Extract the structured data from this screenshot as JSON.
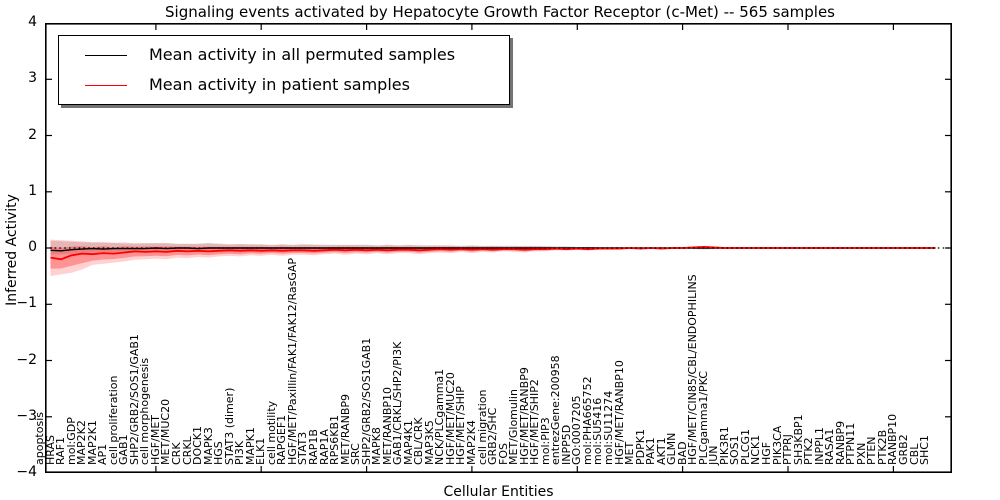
{
  "chart_data": {
    "type": "line",
    "title": "Signaling events activated by Hepatocyte Growth Factor Receptor (c-Met) -- 565 samples",
    "xlabel": "Cellular Entities",
    "ylabel": "Inferred Activity",
    "ylim": [
      -4,
      4
    ],
    "yticks": [
      "4",
      "3",
      "2",
      "1",
      "0",
      "−1",
      "−2",
      "−3",
      "−4"
    ],
    "xtick_step": 10,
    "grid": false,
    "legend_position": "upper left",
    "categories": [
      "apoptosis",
      "HRAS",
      "RAF1",
      "mol:GDP",
      "MAP2K2",
      "MAP2K1",
      "AP1",
      "cell proliferation",
      "GAB1",
      "SHP2/GRB2/SOS1/GAB1",
      "cell morphogenesis",
      "HGF/MET",
      "MET/MUC20",
      "CRK",
      "CRKL",
      "DOCK1",
      "MAPK3",
      "HGS",
      "STAT3 (dimer)",
      "PI3K",
      "MAPK1",
      "ELK1",
      "cell motility",
      "RAPGEF1",
      "HGF/MET/Paxillin/FAK1/FAK12/RasGAP",
      "STAT3",
      "RAP1B",
      "RAP1A",
      "RPS6KB1",
      "MET/RANBP9",
      "SRC",
      "SHP2/GRB2/SOS1GAB1",
      "MAPK8",
      "MET/RANBP10",
      "GAB1/CRKL/SHP2/PI3K",
      "MAP4K1",
      "CBL/CRK",
      "MAP3K5",
      "NCK/PLCgamma1",
      "HGF/MET/MUC20",
      "HGF/MET/SHIP",
      "MAP2K4",
      "cell migration",
      "GRB2/SHC",
      "FOS",
      "MET/Glomulin",
      "HGF/MET/RANBP9",
      "HGF/MET/SHIP2",
      "mol:PIP3",
      "entrezGene:200958",
      "INPP5D",
      "GO:0007205",
      "mol:PHA665752",
      "mol:SU5416",
      "mol:SU11274",
      "HGF/MET/RANBP10",
      "MET",
      "PDPK1",
      "PAK1",
      "AKT1",
      "GLMN",
      "BAD",
      "HGF/MET/CIN85/CBL/ENDOPHILINS",
      "PLCgamma1/PKC",
      "JUN",
      "PIK3R1",
      "SOS1",
      "PLCG1",
      "NCK1",
      "HGF",
      "PIK3CA",
      "PTPRJ",
      "SH3KBP1",
      "PTK2",
      "INPPL1",
      "RASA1",
      "RANBP9",
      "PTPN11",
      "PXN",
      "PTEN",
      "PTK2B",
      "RANBP10",
      "GRB2",
      "CBL",
      "SHC1"
    ],
    "series": [
      {
        "name": "Mean activity in all permuted samples",
        "role": "line",
        "color": "#000000",
        "values": [
          -0.04,
          -0.05,
          -0.03,
          -0.02,
          -0.01,
          -0.02,
          -0.01,
          -0.01,
          -0.01,
          -0.01,
          0,
          -0.01,
          0,
          0,
          -0.01,
          0,
          0,
          0,
          0,
          0,
          0,
          0,
          0,
          0,
          0,
          0,
          0,
          0,
          0,
          0,
          0,
          0,
          0,
          0,
          0,
          0,
          0,
          0,
          0,
          0,
          0,
          0,
          0,
          0,
          0,
          0,
          0,
          0,
          0,
          0,
          0,
          0,
          0,
          0,
          0,
          0,
          0,
          0,
          0,
          0,
          0,
          0,
          0,
          0,
          0,
          0,
          0,
          0,
          0,
          0,
          0,
          0,
          0,
          0,
          0,
          0,
          0,
          0,
          0,
          0,
          0,
          0,
          0,
          0,
          0
        ]
      },
      {
        "name": "Mean activity in patient samples",
        "role": "line",
        "color": "#ff0000",
        "values": [
          -0.17,
          -0.2,
          -0.13,
          -0.1,
          -0.11,
          -0.09,
          -0.1,
          -0.08,
          -0.06,
          -0.07,
          -0.06,
          -0.07,
          -0.05,
          -0.06,
          -0.05,
          -0.06,
          -0.05,
          -0.04,
          -0.05,
          -0.04,
          -0.05,
          -0.04,
          -0.05,
          -0.04,
          -0.04,
          -0.05,
          -0.04,
          -0.03,
          -0.04,
          -0.03,
          -0.04,
          -0.03,
          -0.04,
          -0.03,
          -0.03,
          -0.04,
          -0.03,
          -0.02,
          -0.03,
          -0.02,
          -0.03,
          -0.02,
          -0.03,
          -0.02,
          -0.02,
          -0.03,
          -0.02,
          -0.02,
          -0.01,
          -0.02,
          -0.01,
          -0.02,
          -0.01,
          -0.01,
          -0.01,
          0,
          -0.01,
          0,
          -0.01,
          0,
          0,
          0.01,
          0.02,
          0.01,
          0,
          0,
          0,
          0,
          0,
          0,
          0,
          0,
          0,
          0,
          0,
          0,
          0,
          0,
          0,
          0,
          0,
          0,
          0,
          0,
          0
        ]
      },
      {
        "name": "patient samples spread band",
        "role": "band",
        "color": "#ff0000",
        "alpha_outer": 0.18,
        "alpha_inner": 0.3,
        "low": [
          -0.5,
          -0.47,
          -0.44,
          -0.38,
          -0.3,
          -0.28,
          -0.26,
          -0.24,
          -0.21,
          -0.2,
          -0.19,
          -0.2,
          -0.17,
          -0.18,
          -0.16,
          -0.17,
          -0.15,
          -0.14,
          -0.15,
          -0.13,
          -0.14,
          -0.12,
          -0.14,
          -0.12,
          -0.12,
          -0.13,
          -0.11,
          -0.1,
          -0.12,
          -0.1,
          -0.11,
          -0.09,
          -0.11,
          -0.09,
          -0.09,
          -0.11,
          -0.09,
          -0.08,
          -0.09,
          -0.07,
          -0.09,
          -0.07,
          -0.08,
          -0.06,
          -0.07,
          -0.08,
          -0.06,
          -0.06,
          -0.04,
          -0.05,
          -0.03,
          -0.05,
          -0.03,
          -0.02,
          -0.02,
          -0.01,
          -0.02,
          -0.01,
          -0.02,
          -0.01,
          -0.01,
          -0.02,
          -0.03,
          -0.02,
          -0.01,
          -0.01,
          -0.01,
          -0.01,
          -0.01,
          -0.01,
          -0.01,
          -0.01,
          -0.01,
          -0.01,
          -0.01,
          -0.01,
          -0.01,
          -0.01,
          -0.01,
          -0.01,
          -0.01,
          -0.01,
          -0.01,
          -0.01,
          -0.01
        ],
        "high": [
          0.15,
          0.14,
          0.13,
          0.12,
          0.1,
          0.11,
          0.09,
          0.1,
          0.08,
          0.09,
          0.08,
          0.09,
          0.07,
          0.08,
          0.07,
          0.08,
          0.07,
          0.06,
          0.07,
          0.06,
          0.07,
          0.05,
          0.07,
          0.05,
          0.06,
          0.06,
          0.05,
          0.05,
          0.06,
          0.05,
          0.05,
          0.04,
          0.06,
          0.04,
          0.05,
          0.05,
          0.04,
          0.04,
          0.05,
          0.03,
          0.04,
          0.03,
          0.04,
          0.03,
          0.03,
          0.04,
          0.03,
          0.03,
          0.02,
          0.02,
          0.02,
          0.02,
          0.01,
          0.01,
          0.01,
          0.01,
          0.01,
          0.01,
          0.01,
          0.01,
          0.01,
          0.02,
          0.03,
          0.02,
          0.01,
          0.01,
          0.01,
          0.01,
          0.01,
          0.01,
          0.01,
          0.01,
          0.01,
          0.01,
          0.01,
          0.01,
          0.01,
          0.01,
          0.01,
          0.01,
          0.01,
          0.01,
          0.01,
          0.01,
          0.01
        ]
      },
      {
        "name": "permuted samples spread band",
        "role": "band",
        "color": "#000000",
        "alpha_outer": 0.13,
        "low": [
          -0.12,
          -0.11,
          -0.1,
          -0.09,
          -0.08,
          -0.07,
          -0.07,
          -0.06,
          -0.06,
          -0.05,
          -0.05,
          -0.05,
          -0.05,
          -0.05,
          -0.04,
          -0.05,
          -0.04,
          -0.04,
          -0.04,
          -0.04,
          -0.04,
          -0.03,
          -0.04,
          -0.03,
          -0.03,
          -0.04,
          -0.03,
          -0.03,
          -0.03,
          -0.03,
          -0.03,
          -0.02,
          -0.03,
          -0.02,
          -0.02,
          -0.03,
          -0.02,
          -0.02,
          -0.02,
          -0.02,
          -0.02,
          -0.02,
          -0.02,
          -0.01,
          -0.01,
          -0.02,
          -0.01,
          -0.01,
          -0.01,
          -0.01,
          -0.01,
          -0.01,
          -0.01,
          -0.01,
          -0.01,
          -0.01,
          -0.01,
          -0.01,
          -0.01,
          -0.01,
          -0.01,
          -0.01,
          -0.01,
          -0.01,
          -0.01,
          -0.01,
          -0.01,
          -0.01,
          -0.01,
          -0.01,
          -0.01,
          -0.01,
          -0.01,
          -0.01,
          -0.01,
          -0.01,
          -0.01,
          -0.01,
          -0.01,
          -0.01,
          -0.01,
          -0.01,
          -0.01,
          -0.01,
          -0.01
        ],
        "high": [
          0.13,
          0.12,
          0.11,
          0.1,
          0.1,
          0.09,
          0.09,
          0.08,
          0.08,
          0.08,
          0.09,
          0.08,
          0.08,
          0.07,
          0.08,
          0.09,
          0.08,
          0.07,
          0.07,
          0.07,
          0.06,
          0.06,
          0.06,
          0.06,
          0.07,
          0.06,
          0.06,
          0.06,
          0.05,
          0.06,
          0.06,
          0.05,
          0.05,
          0.05,
          0.06,
          0.04,
          0.05,
          0.05,
          0.04,
          0.04,
          0.05,
          0.04,
          0.04,
          0.04,
          0.04,
          0.03,
          0.04,
          0.03,
          0.03,
          0.03,
          0.02,
          0.02,
          0.02,
          0.02,
          0.02,
          0.01,
          0.01,
          0.01,
          0.01,
          0.01,
          0.01,
          0.01,
          0.01,
          0.01,
          0.01,
          0.01,
          0.01,
          0.01,
          0.01,
          0.01,
          0.01,
          0.01,
          0.01,
          0.01,
          0.01,
          0.01,
          0.01,
          0.01,
          0.01,
          0.01,
          0.01,
          0.01,
          0.01,
          0.01,
          0.01
        ]
      },
      {
        "name": "zero reference",
        "role": "reference-line",
        "style": "dotted",
        "color": "#000000",
        "y": 0
      }
    ]
  }
}
